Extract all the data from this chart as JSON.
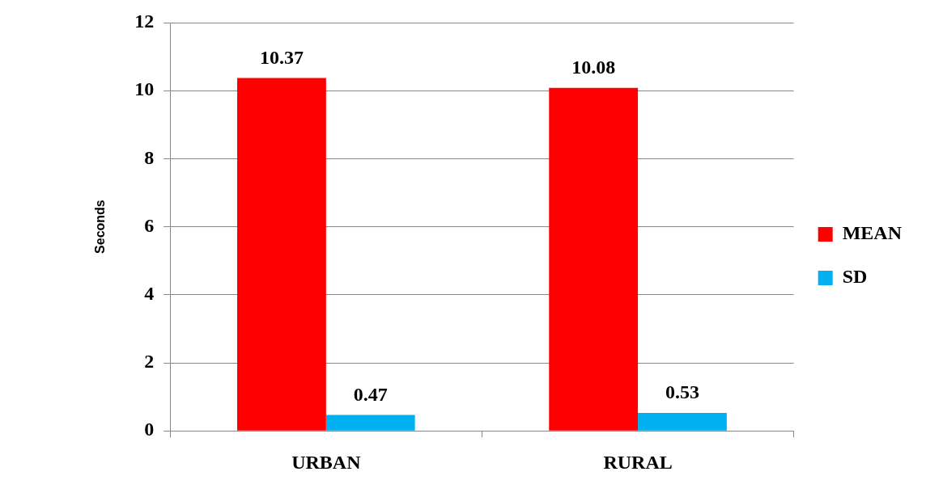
{
  "chart_data": {
    "type": "bar",
    "ylabel": "Seconds",
    "categories": [
      "URBAN",
      "RURAL"
    ],
    "series": [
      {
        "name": "MEAN",
        "color": "#ff0000",
        "values": [
          10.37,
          10.08
        ]
      },
      {
        "name": "SD",
        "color": "#00b0f0",
        "values": [
          0.47,
          0.53
        ]
      }
    ],
    "ylim": [
      0,
      12
    ],
    "yticks": [
      0,
      2,
      4,
      6,
      8,
      10,
      12
    ],
    "grid": "y",
    "legend": "right",
    "data_labels": true
  }
}
